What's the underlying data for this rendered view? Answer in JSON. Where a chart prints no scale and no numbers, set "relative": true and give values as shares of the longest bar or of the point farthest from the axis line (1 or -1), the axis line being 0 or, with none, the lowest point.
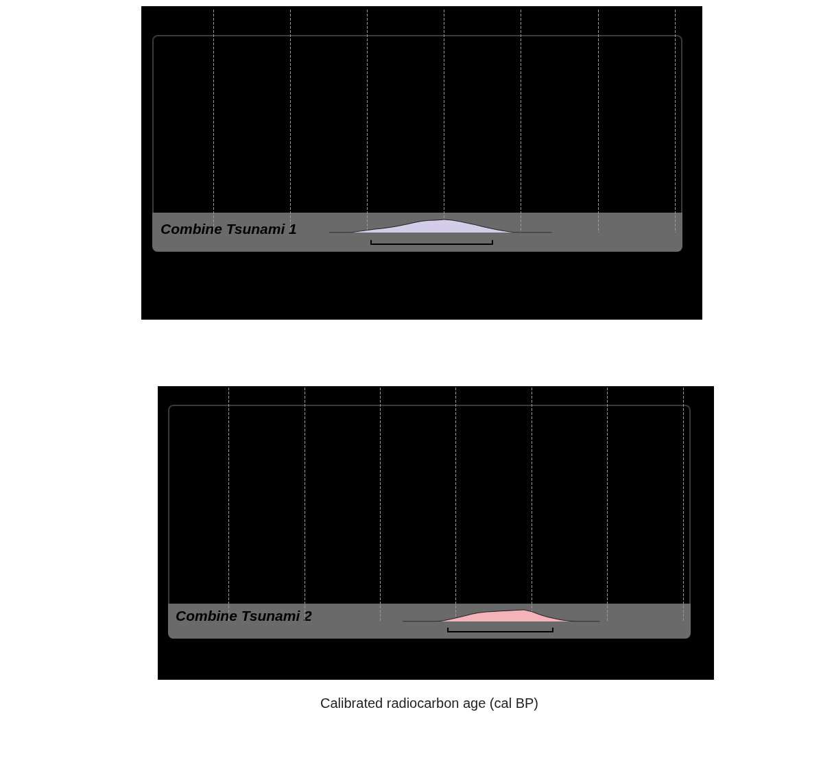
{
  "chart_data": [
    {
      "type": "area",
      "relative": true,
      "grid": "x",
      "legend": false,
      "categories": [
        null,
        null,
        null,
        null,
        null,
        null,
        null,
        null,
        null,
        null,
        null,
        null,
        null,
        null,
        null,
        null,
        null,
        null,
        null,
        null,
        null,
        null,
        null,
        null,
        null,
        null,
        null,
        null,
        null,
        null,
        null,
        null,
        null,
        null,
        null,
        null,
        null,
        null,
        null,
        null,
        null,
        null,
        null,
        null,
        null,
        null,
        null,
        null,
        null,
        null,
        null,
        null,
        null,
        null,
        null,
        null,
        null,
        null,
        null,
        null,
        null,
        null,
        null,
        null,
        null,
        null,
        null,
        null,
        null,
        null
      ],
      "series": [
        {
          "name": "Combine Tsunami 1",
          "color": "#d3cdea",
          "values": [
            null,
            null,
            null,
            null,
            null,
            null,
            null,
            null,
            null,
            null,
            null,
            null,
            null,
            null,
            null,
            null,
            null,
            null,
            null,
            null,
            null,
            null,
            null,
            0,
            0,
            0,
            0.02,
            0.1,
            0.18,
            0.26,
            0.32,
            0.4,
            0.5,
            0.62,
            0.75,
            0.87,
            0.93,
            0.95,
            1,
            0.95,
            0.85,
            0.72,
            0.6,
            0.45,
            0.32,
            0.2,
            0.1,
            0.02,
            0,
            0,
            0,
            0,
            0,
            null,
            null,
            null,
            null,
            null,
            null,
            null,
            null,
            null,
            null,
            null,
            null,
            null,
            null,
            null,
            null,
            null
          ]
        }
      ]
    },
    {
      "type": "area",
      "relative": true,
      "grid": "x",
      "legend": false,
      "xlabel": "Calibrated radiocarbon age (cal BP)",
      "categories": [
        null,
        null,
        null,
        null,
        null,
        null,
        null,
        null,
        null,
        null,
        null,
        null,
        null,
        null,
        null,
        null,
        null,
        null,
        null,
        null,
        null,
        null,
        null,
        null,
        null,
        null,
        null,
        null,
        null,
        null,
        null,
        null,
        null,
        null,
        null,
        null,
        null,
        null,
        null,
        null,
        null,
        null,
        null,
        null,
        null,
        null,
        null,
        null,
        null,
        null,
        null,
        null,
        null,
        null,
        null,
        null,
        null,
        null,
        null,
        null,
        null,
        null,
        null,
        null,
        null,
        null,
        null,
        null,
        null,
        null
      ],
      "series": [
        {
          "name": "Combine Tsunami 2",
          "color": "#f4b3bb",
          "values": [
            null,
            null,
            null,
            null,
            null,
            null,
            null,
            null,
            null,
            null,
            null,
            null,
            null,
            null,
            null,
            null,
            null,
            null,
            null,
            null,
            null,
            null,
            null,
            null,
            null,
            null,
            null,
            null,
            null,
            null,
            null,
            0,
            0,
            0,
            0,
            0,
            0.03,
            0.15,
            0.3,
            0.45,
            0.62,
            0.75,
            0.82,
            0.86,
            0.9,
            0.93,
            0.97,
            1,
            0.85,
            0.6,
            0.4,
            0.25,
            0.12,
            0.04,
            0,
            0,
            0,
            0,
            null,
            null,
            null,
            null,
            null,
            null,
            null,
            null,
            null,
            null,
            null,
            null
          ]
        }
      ]
    }
  ]
}
